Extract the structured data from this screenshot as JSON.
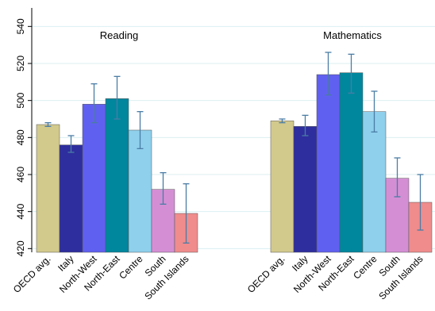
{
  "chart_data": {
    "type": "bar",
    "ylim": [
      418,
      550
    ],
    "yticks": [
      420,
      440,
      460,
      480,
      500,
      520,
      540
    ],
    "grid": true,
    "categories": [
      "OECD avg.",
      "Italy",
      "North-West",
      "North-East",
      "Centre",
      "South",
      "South Islands"
    ],
    "colors": [
      "#d2c98c",
      "#2e2e9e",
      "#6060f0",
      "#00879e",
      "#8fd0ec",
      "#d48fd4",
      "#f08c8c"
    ],
    "panels": [
      {
        "title": "Reading",
        "values": [
          487,
          476,
          498,
          501,
          484,
          452,
          439
        ],
        "error_low": [
          486,
          472,
          488,
          490,
          474,
          444,
          423
        ],
        "error_high": [
          488,
          481,
          509,
          513,
          494,
          461,
          455
        ]
      },
      {
        "title": "Mathematics",
        "values": [
          489,
          486,
          514,
          515,
          494,
          458,
          445
        ],
        "error_low": [
          488,
          481,
          503,
          504,
          483,
          448,
          430
        ],
        "error_high": [
          490,
          492,
          526,
          525,
          505,
          469,
          460
        ]
      }
    ]
  }
}
